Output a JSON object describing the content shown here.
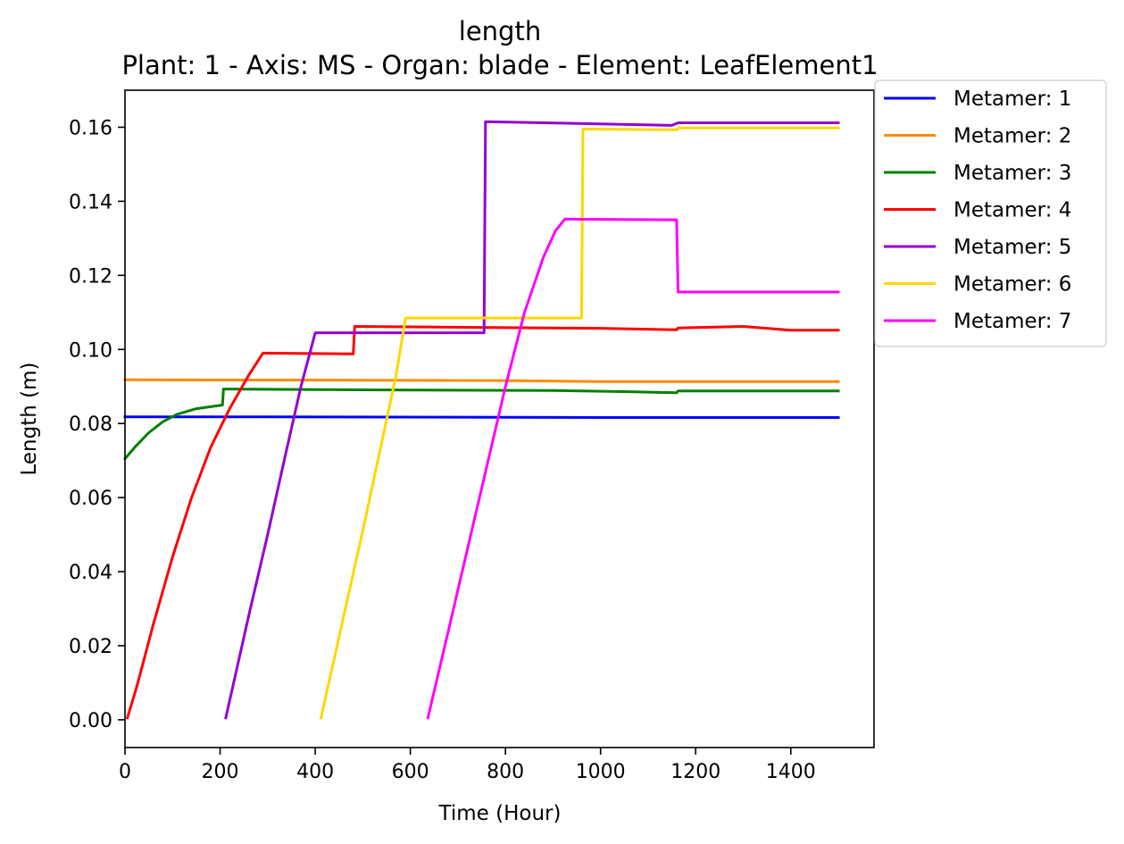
{
  "chart_data": {
    "type": "line",
    "title": "length",
    "subtitle": "Plant: 1 - Axis: MS - Organ: blade - Element: LeafElement1",
    "xlabel": "Time (Hour)",
    "ylabel": "Length (m)",
    "xlim": [
      0,
      1575
    ],
    "ylim": [
      -0.0075,
      0.17
    ],
    "xticks": [
      0,
      200,
      400,
      600,
      800,
      1000,
      1200,
      1400
    ],
    "xtick_labels": [
      "0",
      "200",
      "400",
      "600",
      "800",
      "1000",
      "1200",
      "1400"
    ],
    "yticks": [
      0.0,
      0.02,
      0.04,
      0.06,
      0.08,
      0.1,
      0.12,
      0.14,
      0.16
    ],
    "ytick_labels": [
      "0.00",
      "0.02",
      "0.04",
      "0.06",
      "0.08",
      "0.10",
      "0.12",
      "0.14",
      "0.16"
    ],
    "grid": false,
    "legend_position": "outside-top-right",
    "series": [
      {
        "name": "Metamer: 1",
        "color": "#0000ff",
        "points": [
          [
            0,
            0.0818
          ],
          [
            300,
            0.0818
          ],
          [
            700,
            0.0817
          ],
          [
            1000,
            0.0816
          ],
          [
            1500,
            0.0816
          ]
        ]
      },
      {
        "name": "Metamer: 2",
        "color": "#ff8c00",
        "points": [
          [
            0,
            0.0918
          ],
          [
            500,
            0.0917
          ],
          [
            800,
            0.0916
          ],
          [
            1000,
            0.0913
          ],
          [
            1500,
            0.0913
          ]
        ]
      },
      {
        "name": "Metamer: 3",
        "color": "#008000",
        "points": [
          [
            0,
            0.0705
          ],
          [
            20,
            0.0735
          ],
          [
            50,
            0.0775
          ],
          [
            80,
            0.0805
          ],
          [
            110,
            0.0825
          ],
          [
            150,
            0.084
          ],
          [
            205,
            0.085
          ],
          [
            207,
            0.0893
          ],
          [
            500,
            0.0891
          ],
          [
            900,
            0.0889
          ],
          [
            1050,
            0.0886
          ],
          [
            1160,
            0.0883
          ],
          [
            1163,
            0.0888
          ],
          [
            1500,
            0.0888
          ]
        ]
      },
      {
        "name": "Metamer: 4",
        "color": "#ff0000",
        "points": [
          [
            5,
            0.0005
          ],
          [
            25,
            0.009
          ],
          [
            60,
            0.026
          ],
          [
            100,
            0.044
          ],
          [
            140,
            0.06
          ],
          [
            180,
            0.0735
          ],
          [
            220,
            0.084
          ],
          [
            260,
            0.093
          ],
          [
            290,
            0.099
          ],
          [
            480,
            0.0988
          ],
          [
            483,
            0.1062
          ],
          [
            1000,
            0.1057
          ],
          [
            1160,
            0.1053
          ],
          [
            1163,
            0.1058
          ],
          [
            1300,
            0.1062
          ],
          [
            1400,
            0.1052
          ],
          [
            1500,
            0.1052
          ]
        ]
      },
      {
        "name": "Metamer: 5",
        "color": "#9400d3",
        "points": [
          [
            212,
            0.0005
          ],
          [
            260,
            0.028
          ],
          [
            300,
            0.05
          ],
          [
            340,
            0.073
          ],
          [
            370,
            0.09
          ],
          [
            400,
            0.1045
          ],
          [
            755,
            0.1045
          ],
          [
            758,
            0.1615
          ],
          [
            1150,
            0.1605
          ],
          [
            1163,
            0.1612
          ],
          [
            1500,
            0.1612
          ]
        ]
      },
      {
        "name": "Metamer: 6",
        "color": "#ffd700",
        "points": [
          [
            412,
            0.0005
          ],
          [
            460,
            0.028
          ],
          [
            500,
            0.051
          ],
          [
            540,
            0.075
          ],
          [
            570,
            0.093
          ],
          [
            590,
            0.1085
          ],
          [
            960,
            0.1085
          ],
          [
            963,
            0.1595
          ],
          [
            1160,
            0.1593
          ],
          [
            1163,
            0.1598
          ],
          [
            1500,
            0.1598
          ]
        ]
      },
      {
        "name": "Metamer: 7",
        "color": "#ff00ff",
        "points": [
          [
            637,
            0.0005
          ],
          [
            680,
            0.024
          ],
          [
            720,
            0.046
          ],
          [
            760,
            0.068
          ],
          [
            800,
            0.09
          ],
          [
            840,
            0.11
          ],
          [
            880,
            0.125
          ],
          [
            905,
            0.132
          ],
          [
            925,
            0.1352
          ],
          [
            1160,
            0.135
          ],
          [
            1163,
            0.1155
          ],
          [
            1500,
            0.1155
          ]
        ]
      }
    ]
  }
}
